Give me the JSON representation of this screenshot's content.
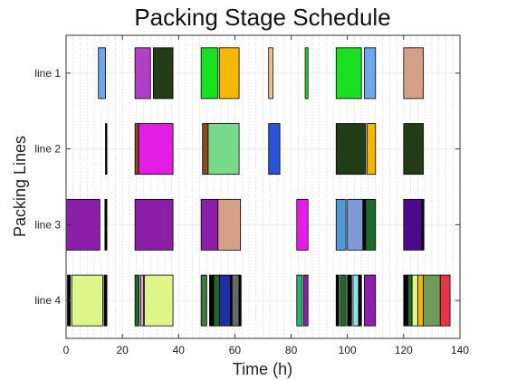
{
  "chart_data": {
    "type": "gantt",
    "title": "Packing Stage Schedule",
    "xlabel": "Time (h)",
    "ylabel": "Packing Lines",
    "xlim": [
      0,
      140
    ],
    "xticks": [
      "0",
      "20",
      "40",
      "60",
      "80",
      "100",
      "120",
      "140"
    ],
    "xtick_values": [
      0,
      20,
      40,
      60,
      80,
      100,
      120,
      140
    ],
    "rows": [
      "line 1",
      "line 2",
      "line 3",
      "line 4"
    ],
    "grid": "dotted vertical lines every 2.5 h",
    "tasks": [
      {
        "row": "line 1",
        "start": 11.5,
        "end": 14.0,
        "color": "#6fa8e8"
      },
      {
        "row": "line 1",
        "start": 24.5,
        "end": 30.0,
        "color": "#b23fc6"
      },
      {
        "row": "line 1",
        "start": 31.0,
        "end": 38.0,
        "color": "#223d16"
      },
      {
        "row": "line 1",
        "start": 48.0,
        "end": 54.0,
        "color": "#18e020"
      },
      {
        "row": "line 1",
        "start": 54.5,
        "end": 61.5,
        "color": "#f5b800"
      },
      {
        "row": "line 1",
        "start": 72.0,
        "end": 73.5,
        "color": "#f3bf8c"
      },
      {
        "row": "line 1",
        "start": 85.0,
        "end": 86.0,
        "color": "#2fd42f"
      },
      {
        "row": "line 1",
        "start": 96.0,
        "end": 105.0,
        "color": "#18e020"
      },
      {
        "row": "line 1",
        "start": 106.0,
        "end": 110.0,
        "color": "#6fa8e8"
      },
      {
        "row": "line 1",
        "start": 120.0,
        "end": 127.0,
        "color": "#d4a088"
      },
      {
        "row": "line 2",
        "start": 14.0,
        "end": 14.5,
        "color": "#000000"
      },
      {
        "row": "line 2",
        "start": 24.5,
        "end": 25.8,
        "color": "#8a4a1e"
      },
      {
        "row": "line 2",
        "start": 25.8,
        "end": 38.0,
        "color": "#e41de4"
      },
      {
        "row": "line 2",
        "start": 48.5,
        "end": 50.5,
        "color": "#8a4a1e"
      },
      {
        "row": "line 2",
        "start": 50.5,
        "end": 61.5,
        "color": "#77d98c"
      },
      {
        "row": "line 2",
        "start": 72.0,
        "end": 76.0,
        "color": "#2b52d6"
      },
      {
        "row": "line 2",
        "start": 96.0,
        "end": 106.5,
        "color": "#223d16"
      },
      {
        "row": "line 2",
        "start": 107.0,
        "end": 110.0,
        "color": "#f5b800"
      },
      {
        "row": "line 2",
        "start": 120.0,
        "end": 127.0,
        "color": "#223d16"
      },
      {
        "row": "line 3",
        "start": 0.0,
        "end": 12.0,
        "color": "#8b1fa8"
      },
      {
        "row": "line 3",
        "start": 13.8,
        "end": 14.5,
        "color": "#000000"
      },
      {
        "row": "line 3",
        "start": 24.5,
        "end": 38.0,
        "color": "#8b1fa8"
      },
      {
        "row": "line 3",
        "start": 48.0,
        "end": 54.0,
        "color": "#8b1fa8"
      },
      {
        "row": "line 3",
        "start": 54.0,
        "end": 62.0,
        "color": "#d4a088"
      },
      {
        "row": "line 3",
        "start": 82.0,
        "end": 86.0,
        "color": "#e41de4"
      },
      {
        "row": "line 3",
        "start": 96.0,
        "end": 99.5,
        "color": "#4f96dc"
      },
      {
        "row": "line 3",
        "start": 100.0,
        "end": 105.5,
        "color": "#7f9ad6"
      },
      {
        "row": "line 3",
        "start": 105.5,
        "end": 106.5,
        "color": "#000000"
      },
      {
        "row": "line 3",
        "start": 106.5,
        "end": 110.0,
        "color": "#1e6a2a"
      },
      {
        "row": "line 3",
        "start": 120.0,
        "end": 126.5,
        "color": "#4b0a8c"
      },
      {
        "row": "line 3",
        "start": 126.5,
        "end": 127.2,
        "color": "#000000"
      },
      {
        "row": "line 4",
        "start": 0.5,
        "end": 1.5,
        "color": "#000000"
      },
      {
        "row": "line 4",
        "start": 2.0,
        "end": 13.0,
        "color": "#ddf589"
      },
      {
        "row": "line 4",
        "start": 13.5,
        "end": 14.5,
        "color": "#000000"
      },
      {
        "row": "line 4",
        "start": 24.5,
        "end": 26.0,
        "color": "#1e6a2a"
      },
      {
        "row": "line 4",
        "start": 26.5,
        "end": 27.5,
        "color": "#f0a4c8"
      },
      {
        "row": "line 4",
        "start": 27.8,
        "end": 38.0,
        "color": "#ddf589"
      },
      {
        "row": "line 4",
        "start": 48.0,
        "end": 50.0,
        "color": "#3d7a3d"
      },
      {
        "row": "line 4",
        "start": 51.0,
        "end": 52.5,
        "color": "#000000"
      },
      {
        "row": "line 4",
        "start": 52.5,
        "end": 54.5,
        "color": "#1e6a2a"
      },
      {
        "row": "line 4",
        "start": 54.5,
        "end": 58.5,
        "color": "#1d2fa0"
      },
      {
        "row": "line 4",
        "start": 58.5,
        "end": 59.0,
        "color": "#000000"
      },
      {
        "row": "line 4",
        "start": 59.0,
        "end": 61.5,
        "color": "#686868"
      },
      {
        "row": "line 4",
        "start": 61.5,
        "end": 62.2,
        "color": "#000000"
      },
      {
        "row": "line 4",
        "start": 82.0,
        "end": 84.0,
        "color": "#2fb07a"
      },
      {
        "row": "line 4",
        "start": 84.5,
        "end": 86.0,
        "color": "#8b1fa8"
      },
      {
        "row": "line 4",
        "start": 96.0,
        "end": 97.0,
        "color": "#000000"
      },
      {
        "row": "line 4",
        "start": 97.5,
        "end": 99.5,
        "color": "#1e6a2a"
      },
      {
        "row": "line 4",
        "start": 100.0,
        "end": 101.5,
        "color": "#000000"
      },
      {
        "row": "line 4",
        "start": 102.0,
        "end": 104.0,
        "color": "#8fe0e8"
      },
      {
        "row": "line 4",
        "start": 104.0,
        "end": 105.0,
        "color": "#000000"
      },
      {
        "row": "line 4",
        "start": 106.0,
        "end": 110.0,
        "color": "#8b1fa8"
      },
      {
        "row": "line 4",
        "start": 120.0,
        "end": 121.5,
        "color": "#000000"
      },
      {
        "row": "line 4",
        "start": 121.5,
        "end": 123.0,
        "color": "#1e6a2a"
      },
      {
        "row": "line 4",
        "start": 123.0,
        "end": 125.0,
        "color": "#ddf589"
      },
      {
        "row": "line 4",
        "start": 125.0,
        "end": 127.0,
        "color": "#f5b800"
      },
      {
        "row": "line 4",
        "start": 127.0,
        "end": 133.0,
        "color": "#6f9a5a"
      },
      {
        "row": "line 4",
        "start": 133.0,
        "end": 136.5,
        "color": "#e8344a"
      }
    ]
  }
}
